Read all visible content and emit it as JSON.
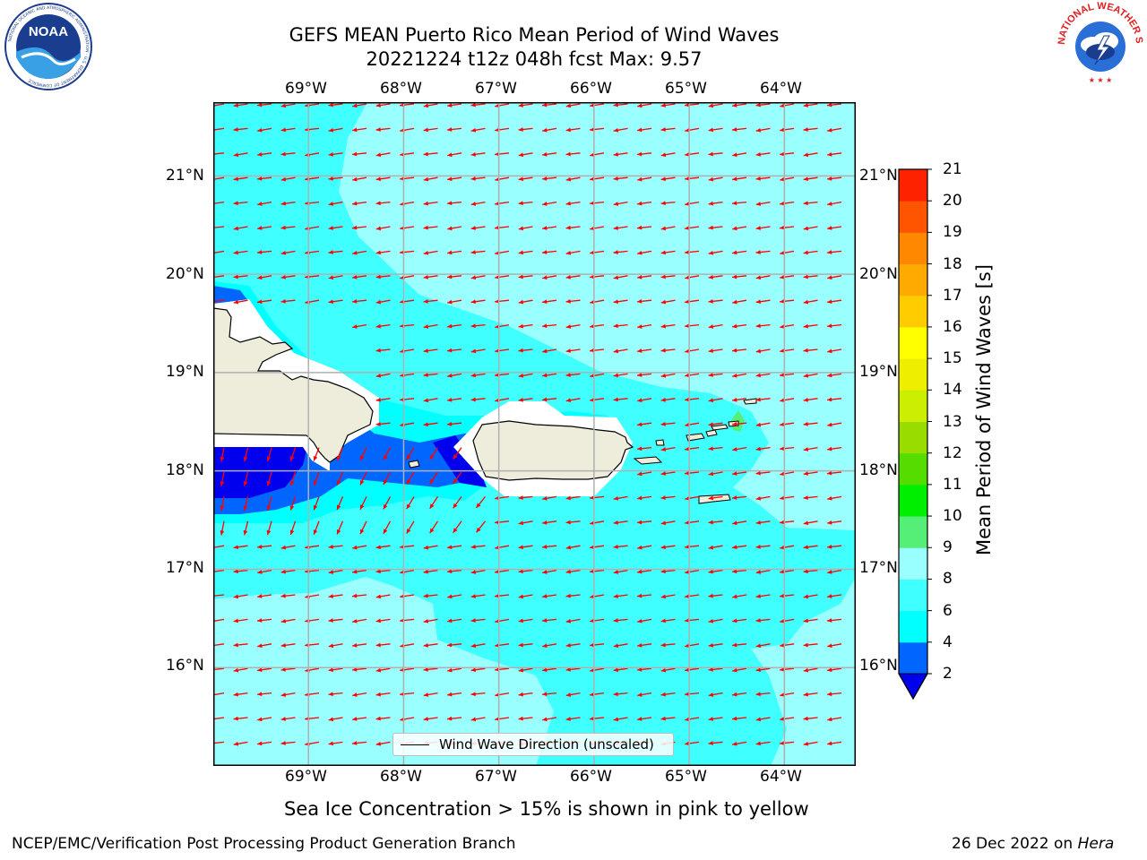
{
  "header": {
    "title_line1": "GEFS MEAN Puerto Rico Mean Period of Wind Waves",
    "title_line2": "20221224 t12z 048h fcst   Max: 9.57"
  },
  "logos": {
    "noaa": {
      "text": "NOAA",
      "ring_text": "NATIONAL OCEANIC AND ATMOSPHERIC ADMINISTRATION · U.S. DEPARTMENT OF COMMERCE"
    },
    "nws": {
      "ring_text": "NATIONAL WEATHER SERVICE"
    }
  },
  "map": {
    "lon_labels": [
      "69°W",
      "68°W",
      "67°W",
      "66°W",
      "65°W",
      "64°W"
    ],
    "lat_labels": [
      "21°N",
      "20°N",
      "19°N",
      "18°N",
      "17°N",
      "16°N"
    ],
    "lon_values": [
      -69,
      -68,
      -67,
      -66,
      -65,
      -64
    ],
    "lat_values": [
      21,
      20,
      19,
      18,
      17,
      16
    ],
    "lon_range": [
      -70,
      -63.25
    ],
    "lat_range": [
      15,
      21.75
    ],
    "legend_label": "Wind Wave Direction (unscaled)",
    "vector_color": "#ff0000",
    "land_color": "#eeeddc",
    "grid_color": "#b0b0b0",
    "coastline_color": "#000000"
  },
  "colorbar": {
    "label": "Mean Period of Wind Waves [s]",
    "ticks": [
      "2",
      "4",
      "6",
      "8",
      "9",
      "10",
      "11",
      "12",
      "13",
      "14",
      "15",
      "16",
      "17",
      "18",
      "19",
      "20",
      "21"
    ],
    "colors": [
      "#0066ff",
      "#00ffff",
      "#40ffff",
      "#99ffff",
      "#55ee77",
      "#00ee00",
      "#55dd00",
      "#99dd00",
      "#ccee00",
      "#eeee00",
      "#ffff00",
      "#ffcc00",
      "#ffaa00",
      "#ff8800",
      "#ff5500",
      "#ff2200"
    ],
    "under_color": "#0000ee",
    "extend": "min"
  },
  "notes": {
    "sea_ice": "Sea Ice Concentration > 15% is shown in pink to yellow",
    "footer_left": "NCEP/EMC/Verification Post Processing Product Generation Branch",
    "footer_date": "26 Dec 2022 on ",
    "footer_machine": "Hera"
  }
}
